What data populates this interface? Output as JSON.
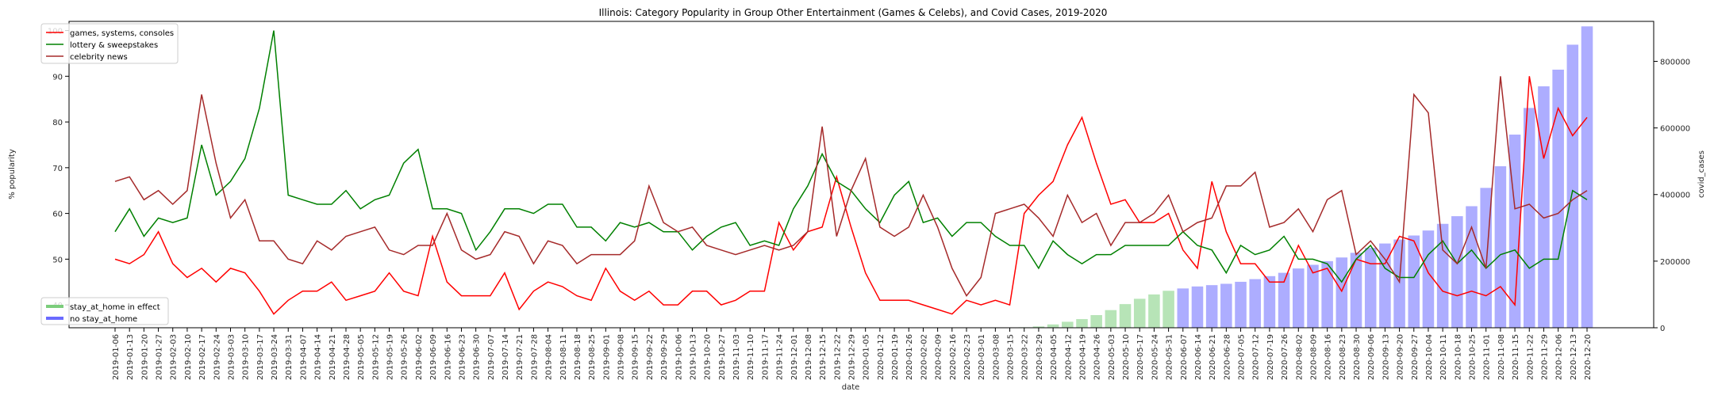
{
  "chart_data": {
    "type": "line",
    "title": "Illinois: Category Popularity in Group Other Entertainment (Games & Celebs), and Covid Cases, 2019-2020",
    "xlabel": "date",
    "ylabel": "% popularity",
    "y2label": "covid_cases",
    "ylim": [
      35,
      102
    ],
    "y2lim": [
      0,
      920000
    ],
    "yticks": [
      40,
      50,
      60,
      70,
      80,
      90,
      100
    ],
    "y2ticks": [
      0,
      200000,
      400000,
      600000,
      800000
    ],
    "grid": false,
    "categories": [
      "2019-01-06",
      "2019-01-13",
      "2019-01-20",
      "2019-01-27",
      "2019-02-03",
      "2019-02-10",
      "2019-02-17",
      "2019-02-24",
      "2019-03-03",
      "2019-03-10",
      "2019-03-17",
      "2019-03-24",
      "2019-03-31",
      "2019-04-07",
      "2019-04-14",
      "2019-04-21",
      "2019-04-28",
      "2019-05-05",
      "2019-05-12",
      "2019-05-19",
      "2019-05-26",
      "2019-06-02",
      "2019-06-09",
      "2019-06-16",
      "2019-06-23",
      "2019-06-30",
      "2019-07-07",
      "2019-07-14",
      "2019-07-21",
      "2019-07-28",
      "2019-08-04",
      "2019-08-11",
      "2019-08-18",
      "2019-08-25",
      "2019-09-01",
      "2019-09-08",
      "2019-09-15",
      "2019-09-22",
      "2019-09-29",
      "2019-10-06",
      "2019-10-13",
      "2019-10-20",
      "2019-10-27",
      "2019-11-03",
      "2019-11-10",
      "2019-11-17",
      "2019-11-24",
      "2019-12-01",
      "2019-12-08",
      "2019-12-15",
      "2019-12-22",
      "2019-12-29",
      "2020-01-05",
      "2020-01-12",
      "2020-01-19",
      "2020-01-26",
      "2020-02-02",
      "2020-02-09",
      "2020-02-16",
      "2020-02-23",
      "2020-03-01",
      "2020-03-08",
      "2020-03-15",
      "2020-03-22",
      "2020-03-29",
      "2020-04-05",
      "2020-04-12",
      "2020-04-19",
      "2020-04-26",
      "2020-05-03",
      "2020-05-10",
      "2020-05-17",
      "2020-05-24",
      "2020-05-31",
      "2020-06-07",
      "2020-06-14",
      "2020-06-21",
      "2020-06-28",
      "2020-07-05",
      "2020-07-12",
      "2020-07-19",
      "2020-07-26",
      "2020-08-02",
      "2020-08-09",
      "2020-08-16",
      "2020-08-23",
      "2020-08-30",
      "2020-09-06",
      "2020-09-13",
      "2020-09-20",
      "2020-09-27",
      "2020-10-04",
      "2020-10-11",
      "2020-10-18",
      "2020-10-25",
      "2020-11-01",
      "2020-11-08",
      "2020-11-15",
      "2020-11-22",
      "2020-11-29",
      "2020-12-06",
      "2020-12-13",
      "2020-12-20"
    ],
    "series": [
      {
        "name": "games, systems, consoles",
        "color": "#ff0000",
        "values": [
          50,
          49,
          51,
          56,
          49,
          46,
          48,
          45,
          48,
          47,
          43,
          38,
          41,
          43,
          43,
          45,
          41,
          42,
          43,
          47,
          43,
          42,
          55,
          45,
          42,
          42,
          42,
          47,
          39,
          43,
          45,
          44,
          42,
          41,
          48,
          43,
          41,
          43,
          40,
          40,
          43,
          43,
          40,
          41,
          43,
          43,
          58,
          52,
          56,
          57,
          68,
          57,
          47,
          41,
          41,
          41,
          40,
          39,
          38,
          41,
          40,
          41,
          40,
          60,
          64,
          67,
          75,
          81,
          71,
          62,
          63,
          58,
          58,
          60,
          52,
          48,
          67,
          56,
          49,
          49,
          45,
          45,
          53,
          47,
          48,
          43,
          50,
          49,
          49,
          55,
          54,
          47,
          43,
          42,
          43,
          42,
          44,
          40,
          90,
          72,
          83,
          77,
          81
        ]
      },
      {
        "name": "lottery & sweepstakes",
        "color": "#008000",
        "values": [
          56,
          61,
          55,
          59,
          58,
          59,
          75,
          64,
          67,
          72,
          83,
          100,
          64,
          63,
          62,
          62,
          65,
          61,
          63,
          64,
          71,
          74,
          61,
          61,
          60,
          52,
          56,
          61,
          61,
          60,
          62,
          62,
          57,
          57,
          54,
          58,
          57,
          58,
          56,
          56,
          52,
          55,
          57,
          58,
          53,
          54,
          53,
          61,
          66,
          73,
          67,
          65,
          61,
          58,
          64,
          67,
          58,
          59,
          55,
          58,
          58,
          55,
          53,
          53,
          48,
          54,
          51,
          49,
          51,
          51,
          53,
          53,
          53,
          53,
          56,
          53,
          52,
          47,
          53,
          51,
          52,
          55,
          50,
          50,
          49,
          45,
          50,
          53,
          48,
          46,
          46,
          51,
          54,
          49,
          52,
          48,
          51,
          52,
          48,
          50,
          50,
          65,
          63
        ]
      },
      {
        "name": "celebrity news",
        "color": "#a52a2a",
        "values": [
          67,
          68,
          63,
          65,
          62,
          65,
          86,
          71,
          59,
          63,
          54,
          54,
          50,
          49,
          54,
          52,
          55,
          56,
          57,
          52,
          51,
          53,
          53,
          60,
          52,
          50,
          51,
          56,
          55,
          49,
          54,
          53,
          49,
          51,
          51,
          51,
          54,
          66,
          58,
          56,
          57,
          53,
          52,
          51,
          52,
          53,
          52,
          53,
          56,
          79,
          55,
          65,
          72,
          57,
          55,
          57,
          64,
          57,
          48,
          42,
          46,
          60,
          61,
          62,
          59,
          55,
          64,
          58,
          60,
          53,
          58,
          58,
          60,
          64,
          56,
          58,
          59,
          66,
          66,
          69,
          57,
          58,
          61,
          56,
          63,
          65,
          51,
          54,
          50,
          45,
          86,
          82,
          52,
          49,
          57,
          48,
          90,
          61,
          62,
          59,
          60,
          63,
          65
        ]
      }
    ],
    "bars": {
      "name": "covid_cases",
      "legend": [
        {
          "name": "stay_at_home in effect",
          "color": "#7ccd7c"
        },
        {
          "name": "no stay_at_home",
          "color": "#6a6aff"
        }
      ],
      "stay_at_home_range": [
        "2020-03-22",
        "2020-05-31"
      ],
      "values": [
        0,
        0,
        0,
        0,
        0,
        0,
        0,
        0,
        0,
        0,
        0,
        0,
        0,
        0,
        0,
        0,
        0,
        0,
        0,
        0,
        0,
        0,
        0,
        0,
        0,
        0,
        0,
        0,
        0,
        0,
        0,
        0,
        0,
        0,
        0,
        0,
        0,
        0,
        0,
        0,
        0,
        0,
        0,
        0,
        0,
        0,
        0,
        0,
        0,
        0,
        0,
        0,
        0,
        0,
        0,
        0,
        0,
        0,
        0,
        0,
        0,
        0,
        0,
        1500,
        4000,
        10000,
        18000,
        26000,
        38000,
        53000,
        71000,
        87000,
        100000,
        111000,
        118000,
        124000,
        128000,
        132000,
        138000,
        146000,
        155000,
        165000,
        178000,
        189000,
        200000,
        211000,
        225000,
        240000,
        253000,
        265000,
        277000,
        292000,
        312000,
        335000,
        365000,
        420000,
        485000,
        580000,
        660000,
        725000,
        775000,
        850000,
        905000
      ]
    },
    "legend_placement": "top-left (lines), bottom-left (bars)"
  }
}
